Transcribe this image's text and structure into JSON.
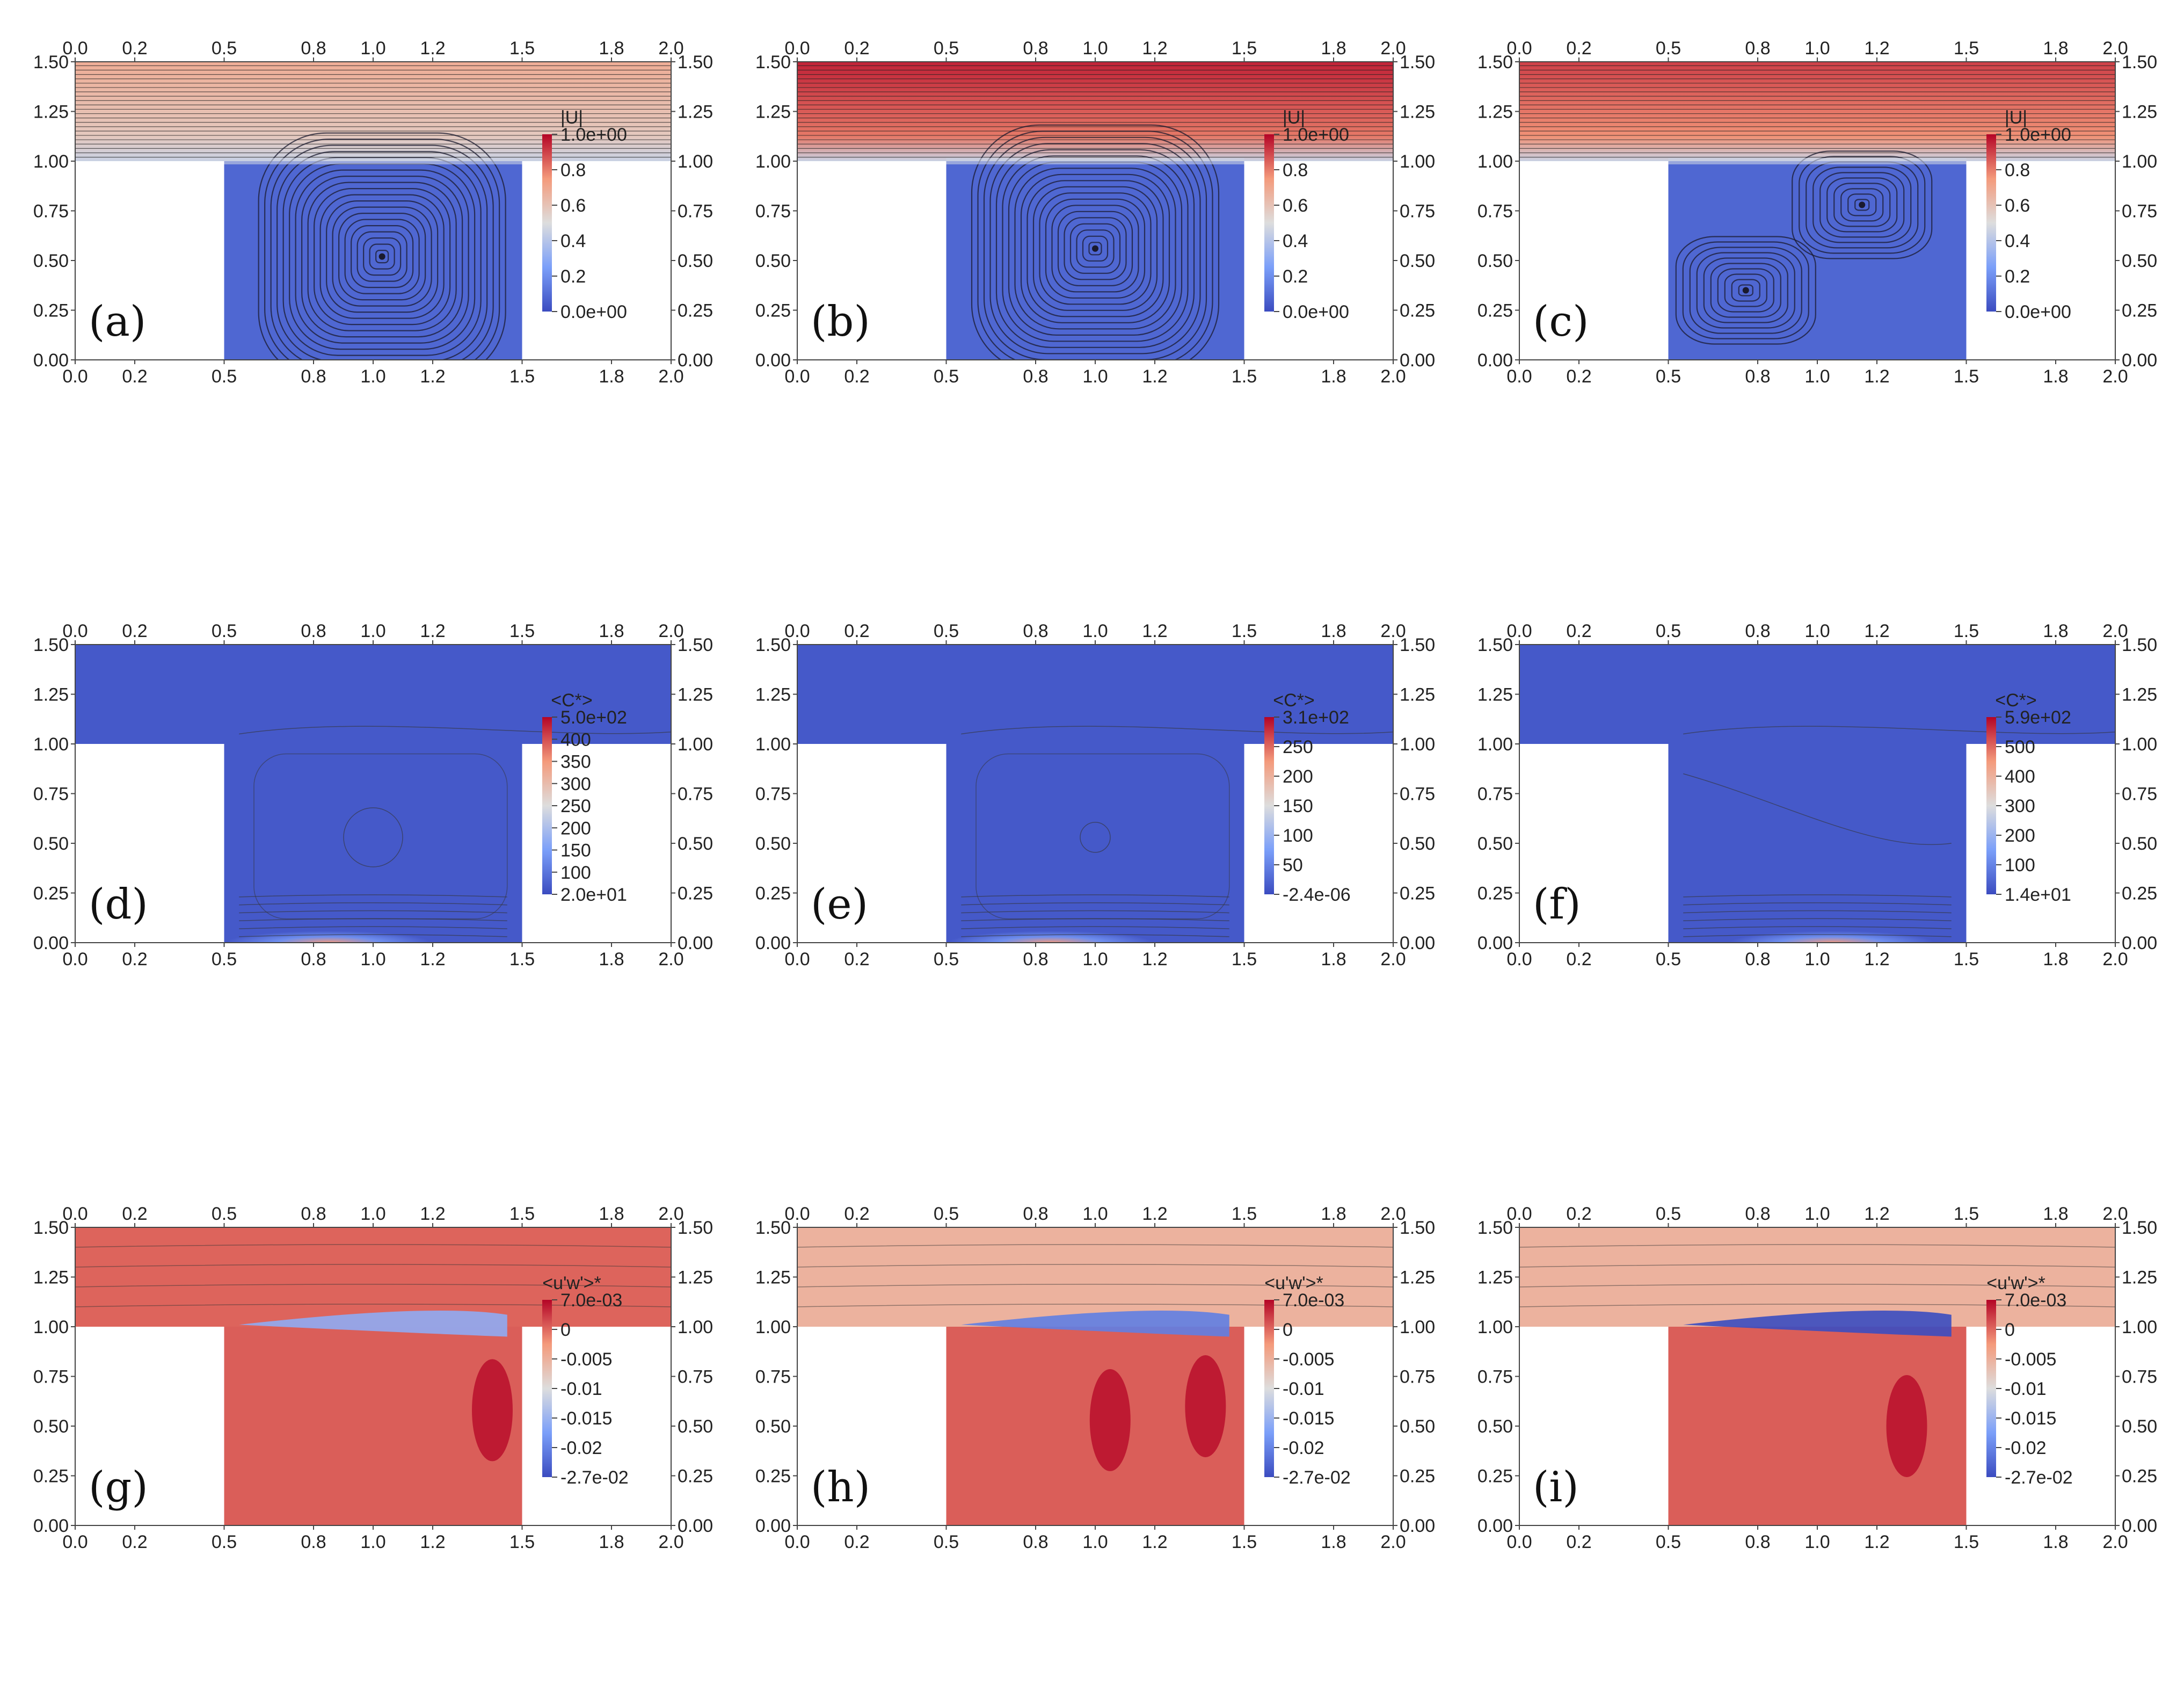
{
  "figure": {
    "panels": [
      {
        "label": "(a)",
        "field": "velocity",
        "cbar_title": "|U|",
        "cbar_ticks": [
          "1.0e+00",
          "0.8",
          "0.6",
          "0.4",
          "0.2",
          "0.0e+00"
        ]
      },
      {
        "label": "(b)",
        "field": "velocity",
        "cbar_title": "|U|",
        "cbar_ticks": [
          "1.0e+00",
          "0.8",
          "0.6",
          "0.4",
          "0.2",
          "0.0e+00"
        ]
      },
      {
        "label": "(c)",
        "field": "velocity",
        "cbar_title": "|U|",
        "cbar_ticks": [
          "1.0e+00",
          "0.8",
          "0.6",
          "0.4",
          "0.2",
          "0.0e+00"
        ]
      },
      {
        "label": "(d)",
        "field": "concentration",
        "cbar_title": "<C*>",
        "cbar_ticks": [
          "5.0e+02",
          "400",
          "350",
          "300",
          "250",
          "200",
          "150",
          "100",
          "2.0e+01"
        ]
      },
      {
        "label": "(e)",
        "field": "concentration",
        "cbar_title": "<C*>",
        "cbar_ticks": [
          "3.1e+02",
          "250",
          "200",
          "150",
          "100",
          "50",
          "-2.4e-06"
        ]
      },
      {
        "label": "(f)",
        "field": "concentration",
        "cbar_title": "<C*>",
        "cbar_ticks": [
          "5.9e+02",
          "500",
          "400",
          "300",
          "200",
          "100",
          "1.4e+01"
        ]
      },
      {
        "label": "(g)",
        "field": "stress",
        "cbar_title": "<u'w'>*",
        "cbar_ticks": [
          "7.0e-03",
          "0",
          "-0.005",
          "-0.01",
          "-0.015",
          "-0.02",
          "-2.7e-02"
        ]
      },
      {
        "label": "(h)",
        "field": "stress",
        "cbar_title": "<u'w'>*",
        "cbar_ticks": [
          "7.0e-03",
          "0",
          "-0.005",
          "-0.01",
          "-0.015",
          "-0.02",
          "-2.7e-02"
        ]
      },
      {
        "label": "(i)",
        "field": "stress",
        "cbar_title": "<u'w'>*",
        "cbar_ticks": [
          "7.0e-03",
          "0",
          "-0.005",
          "-0.01",
          "-0.015",
          "-0.02",
          "-2.7e-02"
        ]
      }
    ]
  },
  "colors": {
    "cool": "#3b4cc0",
    "neutral": "#dddddd",
    "warm": "#b40426"
  },
  "chart_data": [
    {
      "type": "heatmap",
      "label": "(a)",
      "x_ticks": [
        "0.0",
        "0.2",
        "0.5",
        "0.8",
        "1.0",
        "1.2",
        "1.5",
        "1.8",
        "2.0"
      ],
      "y_ticks": [
        "1.50",
        "1.25",
        "1.00",
        "0.75",
        "0.50",
        "0.25",
        "0.00"
      ],
      "xlim": [
        0,
        2
      ],
      "ylim": [
        0,
        1.5
      ],
      "colorbar": {
        "title": "|U|",
        "range": [
          0,
          1.0
        ]
      },
      "channel_level": 0.68,
      "vortex_centers": [
        [
          1.03,
          0.52
        ]
      ]
    },
    {
      "type": "heatmap",
      "label": "(b)",
      "x_ticks": [
        "0.0",
        "0.2",
        "0.5",
        "0.8",
        "1.0",
        "1.2",
        "1.5",
        "1.8",
        "2.0"
      ],
      "y_ticks": [
        "1.50",
        "1.25",
        "1.00",
        "0.75",
        "0.50",
        "0.25",
        "0.00"
      ],
      "xlim": [
        0,
        2
      ],
      "ylim": [
        0,
        1.5
      ],
      "colorbar": {
        "title": "|U|",
        "range": [
          0,
          1.0
        ]
      },
      "channel_level": 0.95,
      "vortex_centers": [
        [
          1.0,
          0.56
        ]
      ]
    },
    {
      "type": "heatmap",
      "label": "(c)",
      "x_ticks": [
        "0.0",
        "0.2",
        "0.5",
        "0.8",
        "1.0",
        "1.2",
        "1.5",
        "1.8",
        "2.0"
      ],
      "y_ticks": [
        "1.50",
        "1.25",
        "1.00",
        "0.75",
        "0.50",
        "0.25",
        "0.00"
      ],
      "xlim": [
        0,
        2
      ],
      "ylim": [
        0,
        1.5
      ],
      "colorbar": {
        "title": "|U|",
        "range": [
          0,
          1.0
        ]
      },
      "channel_level": 0.9,
      "vortex_centers": [
        [
          1.15,
          0.78
        ],
        [
          0.76,
          0.35
        ]
      ]
    },
    {
      "type": "heatmap",
      "label": "(d)",
      "x_ticks": [
        "0.0",
        "0.2",
        "0.5",
        "0.8",
        "1.0",
        "1.2",
        "1.5",
        "1.8",
        "2.0"
      ],
      "y_ticks": [
        "1.50",
        "1.25",
        "1.00",
        "0.75",
        "0.50",
        "0.25",
        "0.00"
      ],
      "xlim": [
        0,
        2
      ],
      "ylim": [
        0,
        1.5
      ],
      "colorbar": {
        "title": "<C*>",
        "range": [
          20,
          500
        ]
      }
    },
    {
      "type": "heatmap",
      "label": "(e)",
      "x_ticks": [
        "0.0",
        "0.2",
        "0.5",
        "0.8",
        "1.0",
        "1.2",
        "1.5",
        "1.8",
        "2.0"
      ],
      "y_ticks": [
        "1.50",
        "1.25",
        "1.00",
        "0.75",
        "0.50",
        "0.25",
        "0.00"
      ],
      "xlim": [
        0,
        2
      ],
      "ylim": [
        0,
        1.5
      ],
      "colorbar": {
        "title": "<C*>",
        "range": [
          -2.4e-06,
          310
        ]
      }
    },
    {
      "type": "heatmap",
      "label": "(f)",
      "x_ticks": [
        "0.0",
        "0.2",
        "0.5",
        "0.8",
        "1.0",
        "1.2",
        "1.5",
        "1.8",
        "2.0"
      ],
      "y_ticks": [
        "1.50",
        "1.25",
        "1.00",
        "0.75",
        "0.50",
        "0.25",
        "0.00"
      ],
      "xlim": [
        0,
        2
      ],
      "ylim": [
        0,
        1.5
      ],
      "colorbar": {
        "title": "<C*>",
        "range": [
          14,
          590
        ]
      }
    },
    {
      "type": "heatmap",
      "label": "(g)",
      "x_ticks": [
        "0.0",
        "0.2",
        "0.5",
        "0.8",
        "1.0",
        "1.2",
        "1.5",
        "1.8",
        "2.0"
      ],
      "y_ticks": [
        "1.50",
        "1.25",
        "1.00",
        "0.75",
        "0.50",
        "0.25",
        "0.00"
      ],
      "xlim": [
        0,
        2
      ],
      "ylim": [
        0,
        1.5
      ],
      "colorbar": {
        "title": "<u'w'>*",
        "range": [
          -0.027,
          0.007
        ]
      }
    },
    {
      "type": "heatmap",
      "label": "(h)",
      "x_ticks": [
        "0.0",
        "0.2",
        "0.5",
        "0.8",
        "1.0",
        "1.2",
        "1.5",
        "1.8",
        "2.0"
      ],
      "y_ticks": [
        "1.50",
        "1.25",
        "1.00",
        "0.75",
        "0.50",
        "0.25",
        "0.00"
      ],
      "xlim": [
        0,
        2
      ],
      "ylim": [
        0,
        1.5
      ],
      "colorbar": {
        "title": "<u'w'>*",
        "range": [
          -0.027,
          0.007
        ]
      }
    },
    {
      "type": "heatmap",
      "label": "(i)",
      "x_ticks": [
        "0.0",
        "0.2",
        "0.5",
        "0.8",
        "1.0",
        "1.2",
        "1.5",
        "1.8",
        "2.0"
      ],
      "y_ticks": [
        "1.50",
        "1.25",
        "1.00",
        "0.75",
        "0.50",
        "0.25",
        "0.00"
      ],
      "xlim": [
        0,
        2
      ],
      "ylim": [
        0,
        1.5
      ],
      "colorbar": {
        "title": "<u'w'>*",
        "range": [
          -0.027,
          0.007
        ]
      }
    }
  ]
}
